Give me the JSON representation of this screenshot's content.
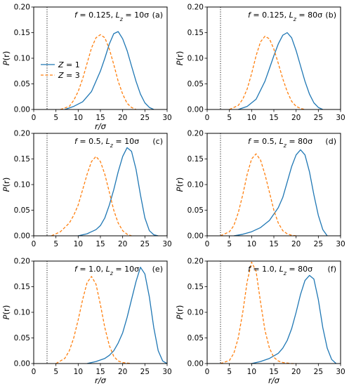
{
  "figure": {
    "colors": {
      "z1": "#1f77b4",
      "z3": "#ff7f0e"
    }
  },
  "chart_data": [
    {
      "panel": "(a)",
      "type": "line",
      "annotation": "f = 0.125,  L_z = 10σ",
      "xlabel": "r/σ",
      "ylabel": "P(r)",
      "xlim": [
        0,
        30
      ],
      "ylim": [
        0,
        0.2
      ],
      "xticks": [
        "0",
        "5",
        "10",
        "15",
        "20",
        "25",
        "30"
      ],
      "yticks": [
        "0.00",
        "0.05",
        "0.10",
        "0.15",
        "0.20"
      ],
      "vline_x": 3,
      "legend": {
        "location": "left",
        "entries": [
          {
            "series": "Z = 1"
          },
          {
            "series": "Z = 3"
          }
        ]
      },
      "series": [
        {
          "name": "Z = 1",
          "style": "solid",
          "x": [
            7,
            9,
            11,
            13,
            15,
            16,
            17,
            18,
            19,
            20,
            21,
            22,
            23,
            24,
            25,
            26,
            27
          ],
          "values": [
            0.0,
            0.006,
            0.015,
            0.035,
            0.075,
            0.1,
            0.128,
            0.148,
            0.152,
            0.138,
            0.115,
            0.085,
            0.055,
            0.03,
            0.013,
            0.004,
            0.0
          ]
        },
        {
          "name": "Z = 3",
          "style": "dashed",
          "x": [
            6,
            8,
            9,
            10,
            11,
            12,
            13,
            14,
            15,
            16,
            17,
            18,
            19,
            20,
            21,
            22,
            23
          ],
          "values": [
            0.0,
            0.006,
            0.018,
            0.035,
            0.06,
            0.09,
            0.12,
            0.14,
            0.146,
            0.14,
            0.118,
            0.088,
            0.055,
            0.03,
            0.012,
            0.004,
            0.0
          ]
        }
      ]
    },
    {
      "panel": "(b)",
      "type": "line",
      "annotation": "f = 0.125,  L_z = 80σ",
      "xlabel": "",
      "ylabel": "P(r)",
      "xlim": [
        0,
        30
      ],
      "ylim": [
        0,
        0.2
      ],
      "xticks": [
        "0",
        "5",
        "10",
        "15",
        "20",
        "25",
        "30"
      ],
      "yticks": [
        "0.00",
        "0.05",
        "0.10",
        "0.15",
        "0.20"
      ],
      "vline_x": 3,
      "series": [
        {
          "name": "Z = 1",
          "style": "solid",
          "x": [
            7,
            9,
            11,
            13,
            14,
            15,
            16,
            17,
            18,
            19,
            20,
            21,
            22,
            23,
            24,
            25,
            26
          ],
          "values": [
            0.0,
            0.006,
            0.02,
            0.055,
            0.08,
            0.105,
            0.128,
            0.145,
            0.15,
            0.14,
            0.115,
            0.085,
            0.055,
            0.03,
            0.013,
            0.004,
            0.0
          ]
        },
        {
          "name": "Z = 3",
          "style": "dashed",
          "x": [
            5,
            7,
            8,
            9,
            10,
            11,
            12,
            13,
            14,
            15,
            16,
            17,
            18,
            19,
            20,
            21,
            22
          ],
          "values": [
            0.0,
            0.008,
            0.02,
            0.04,
            0.07,
            0.105,
            0.132,
            0.143,
            0.138,
            0.118,
            0.09,
            0.06,
            0.035,
            0.016,
            0.006,
            0.002,
            0.0
          ]
        }
      ]
    },
    {
      "panel": "(c)",
      "type": "line",
      "annotation": "f = 0.5,  L_z = 10σ",
      "xlabel": "",
      "ylabel": "P(r)",
      "xlim": [
        0,
        30
      ],
      "ylim": [
        0,
        0.2
      ],
      "xticks": [
        "0",
        "5",
        "10",
        "15",
        "20",
        "25",
        "30"
      ],
      "yticks": [
        "0.00",
        "0.05",
        "0.10",
        "0.15",
        "0.20"
      ],
      "vline_x": 3,
      "series": [
        {
          "name": "Z = 1",
          "style": "solid",
          "x": [
            10,
            12,
            14,
            15,
            16,
            17,
            18,
            19,
            20,
            21,
            22,
            23,
            24,
            25,
            26,
            27,
            28
          ],
          "values": [
            0.0,
            0.004,
            0.012,
            0.02,
            0.035,
            0.06,
            0.09,
            0.125,
            0.155,
            0.172,
            0.165,
            0.13,
            0.08,
            0.035,
            0.01,
            0.002,
            0.0
          ]
        },
        {
          "name": "Z = 3",
          "style": "dashed",
          "x": [
            4,
            6,
            8,
            9,
            10,
            11,
            12,
            13,
            14,
            15,
            16,
            17,
            18,
            19,
            20,
            21,
            22
          ],
          "values": [
            0.0,
            0.008,
            0.025,
            0.04,
            0.06,
            0.09,
            0.12,
            0.145,
            0.155,
            0.145,
            0.12,
            0.085,
            0.05,
            0.025,
            0.01,
            0.003,
            0.0
          ]
        }
      ]
    },
    {
      "panel": "(d)",
      "type": "line",
      "annotation": "f = 0.5,  L_z = 80σ",
      "xlabel": "",
      "ylabel": "P(r)",
      "xlim": [
        0,
        30
      ],
      "ylim": [
        0,
        0.2
      ],
      "xticks": [
        "0",
        "5",
        "10",
        "15",
        "20",
        "25",
        "30"
      ],
      "yticks": [
        "0.00",
        "0.05",
        "0.10",
        "0.15",
        "0.20"
      ],
      "vline_x": 3,
      "series": [
        {
          "name": "Z = 1",
          "style": "solid",
          "x": [
            6,
            8,
            10,
            12,
            14,
            16,
            17,
            18,
            19,
            20,
            21,
            22,
            23,
            24,
            25,
            26,
            27
          ],
          "values": [
            0.0,
            0.003,
            0.008,
            0.016,
            0.03,
            0.055,
            0.075,
            0.105,
            0.135,
            0.158,
            0.168,
            0.158,
            0.125,
            0.08,
            0.04,
            0.012,
            0.0
          ]
        },
        {
          "name": "Z = 3",
          "style": "dashed",
          "x": [
            3,
            5,
            6,
            7,
            8,
            9,
            10,
            11,
            12,
            13,
            14,
            15,
            16,
            17,
            18,
            19,
            20
          ],
          "values": [
            0.0,
            0.008,
            0.02,
            0.045,
            0.08,
            0.12,
            0.15,
            0.16,
            0.148,
            0.12,
            0.085,
            0.05,
            0.025,
            0.01,
            0.004,
            0.001,
            0.0
          ]
        }
      ]
    },
    {
      "panel": "(e)",
      "type": "line",
      "annotation": "f = 1.0,  L_z = 10σ",
      "xlabel": "r/σ",
      "ylabel": "P(r)",
      "xlim": [
        0,
        30
      ],
      "ylim": [
        0,
        0.2
      ],
      "xticks": [
        "0",
        "5",
        "10",
        "15",
        "20",
        "25",
        "30"
      ],
      "yticks": [
        "0.00",
        "0.05",
        "0.10",
        "0.15",
        "0.20"
      ],
      "vline_x": 3,
      "series": [
        {
          "name": "Z = 1",
          "style": "solid",
          "x": [
            12,
            14,
            16,
            17,
            18,
            19,
            20,
            21,
            22,
            23,
            24,
            25,
            26,
            27,
            28,
            29,
            30
          ],
          "values": [
            0.0,
            0.004,
            0.01,
            0.016,
            0.025,
            0.04,
            0.06,
            0.09,
            0.125,
            0.16,
            0.188,
            0.175,
            0.13,
            0.07,
            0.025,
            0.005,
            0.0
          ]
        },
        {
          "name": "Z = 3",
          "style": "dashed",
          "x": [
            5,
            7,
            8,
            9,
            10,
            11,
            12,
            13,
            14,
            15,
            16,
            17,
            18,
            19,
            20,
            21,
            22
          ],
          "values": [
            0.0,
            0.01,
            0.025,
            0.05,
            0.085,
            0.125,
            0.158,
            0.17,
            0.155,
            0.115,
            0.07,
            0.035,
            0.014,
            0.005,
            0.002,
            0.001,
            0.0
          ]
        }
      ]
    },
    {
      "panel": "(f)",
      "type": "line",
      "annotation": "f = 1.0,  L_z = 80σ",
      "xlabel": "r/σ",
      "ylabel": "P(r)",
      "xlim": [
        0,
        30
      ],
      "ylim": [
        0,
        0.2
      ],
      "xticks": [
        "0",
        "5",
        "10",
        "15",
        "20",
        "25",
        "30"
      ],
      "yticks": [
        "0.00",
        "0.05",
        "0.10",
        "0.15",
        "0.20"
      ],
      "vline_x": 3,
      "series": [
        {
          "name": "Z = 1",
          "style": "solid",
          "x": [
            10,
            12,
            14,
            16,
            17,
            18,
            19,
            20,
            21,
            22,
            23,
            24,
            25,
            26,
            27,
            28,
            29
          ],
          "values": [
            0.0,
            0.004,
            0.01,
            0.02,
            0.03,
            0.045,
            0.068,
            0.1,
            0.135,
            0.162,
            0.172,
            0.165,
            0.125,
            0.07,
            0.03,
            0.008,
            0.0
          ]
        },
        {
          "name": "Z = 3",
          "style": "dashed",
          "x": [
            3,
            5,
            6,
            7,
            8,
            9,
            10,
            11,
            12,
            13,
            14,
            15,
            16,
            17,
            18,
            19,
            20
          ],
          "values": [
            0.0,
            0.006,
            0.02,
            0.05,
            0.1,
            0.16,
            0.198,
            0.18,
            0.12,
            0.065,
            0.03,
            0.012,
            0.005,
            0.002,
            0.001,
            0.0,
            0.0
          ]
        }
      ]
    }
  ]
}
